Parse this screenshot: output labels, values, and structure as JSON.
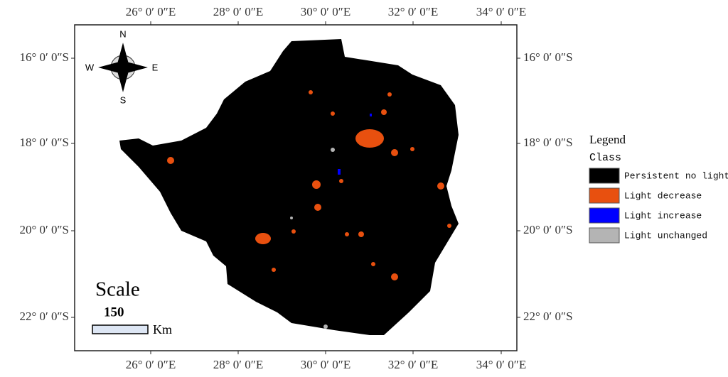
{
  "map": {
    "lon_labels": [
      "26° 0′ 0″E",
      "28° 0′ 0″E",
      "30° 0′ 0″E",
      "32° 0′ 0″E",
      "34° 0′ 0″E"
    ],
    "lat_labels": [
      "16° 0′ 0″S",
      "18° 0′ 0″S",
      "20° 0′ 0″S",
      "22° 0′ 0″S"
    ],
    "compass": {
      "north": "N",
      "south": "S",
      "west": "W",
      "east": "E"
    },
    "scale": {
      "title": "Scale",
      "value": "150",
      "unit": "Km"
    },
    "legend": {
      "title": "Legend",
      "subtitle": "Class",
      "items": [
        {
          "label": "Persistent no light",
          "color": "#000000"
        },
        {
          "label": "Light decrease",
          "color": "#e8500f"
        },
        {
          "label": "Light increase",
          "color": "#0000ff"
        },
        {
          "label": "Light unchanged",
          "color": "#b4b4b4"
        }
      ]
    }
  }
}
